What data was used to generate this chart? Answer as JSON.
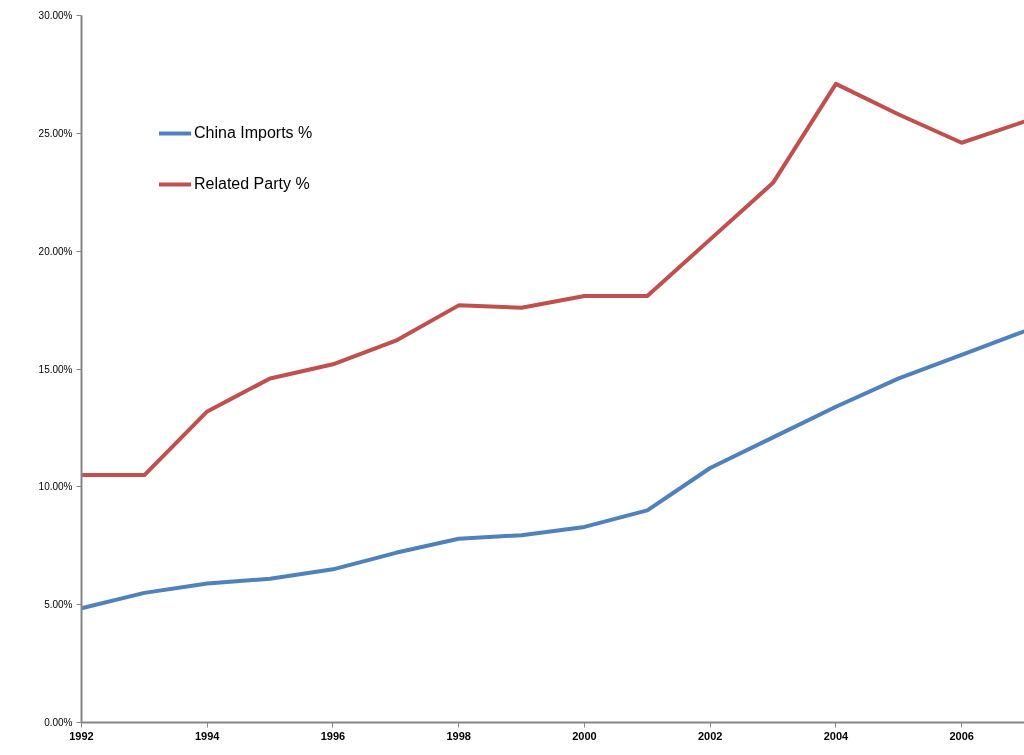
{
  "chart_data": {
    "type": "line",
    "x": [
      1992,
      1993,
      1994,
      1995,
      1996,
      1997,
      1998,
      1999,
      2000,
      2001,
      2002,
      2003,
      2004,
      2005,
      2006,
      2007
    ],
    "series": [
      {
        "name": "China Imports %",
        "color": "#4f81bd",
        "values": [
          4.85,
          5.5,
          5.9,
          6.1,
          6.5,
          7.2,
          7.8,
          7.95,
          8.3,
          9.0,
          10.8,
          12.1,
          13.4,
          14.6,
          15.6,
          16.6
        ]
      },
      {
        "name": "Related Party %",
        "color": "#c0504d",
        "values": [
          10.5,
          10.5,
          13.2,
          14.6,
          15.2,
          16.2,
          17.7,
          17.6,
          18.1,
          18.1,
          20.5,
          22.9,
          27.1,
          25.8,
          24.6,
          25.5
        ]
      }
    ],
    "xlim": [
      1992,
      2007
    ],
    "xticks": [
      1992,
      1994,
      1996,
      1998,
      2000,
      2002,
      2004,
      2006
    ],
    "ylim": [
      0,
      30
    ],
    "yticks": [
      {
        "value": 0,
        "label": "0.00%"
      },
      {
        "value": 5,
        "label": "5.00%"
      },
      {
        "value": 10,
        "label": "10.00%"
      },
      {
        "value": 15,
        "label": "15.00%"
      },
      {
        "value": 20,
        "label": "20.00%"
      },
      {
        "value": 25,
        "label": "25.00%"
      },
      {
        "value": 30,
        "label": "30.00%"
      }
    ],
    "grid": false,
    "legend": "top left",
    "line_style": "solid"
  }
}
